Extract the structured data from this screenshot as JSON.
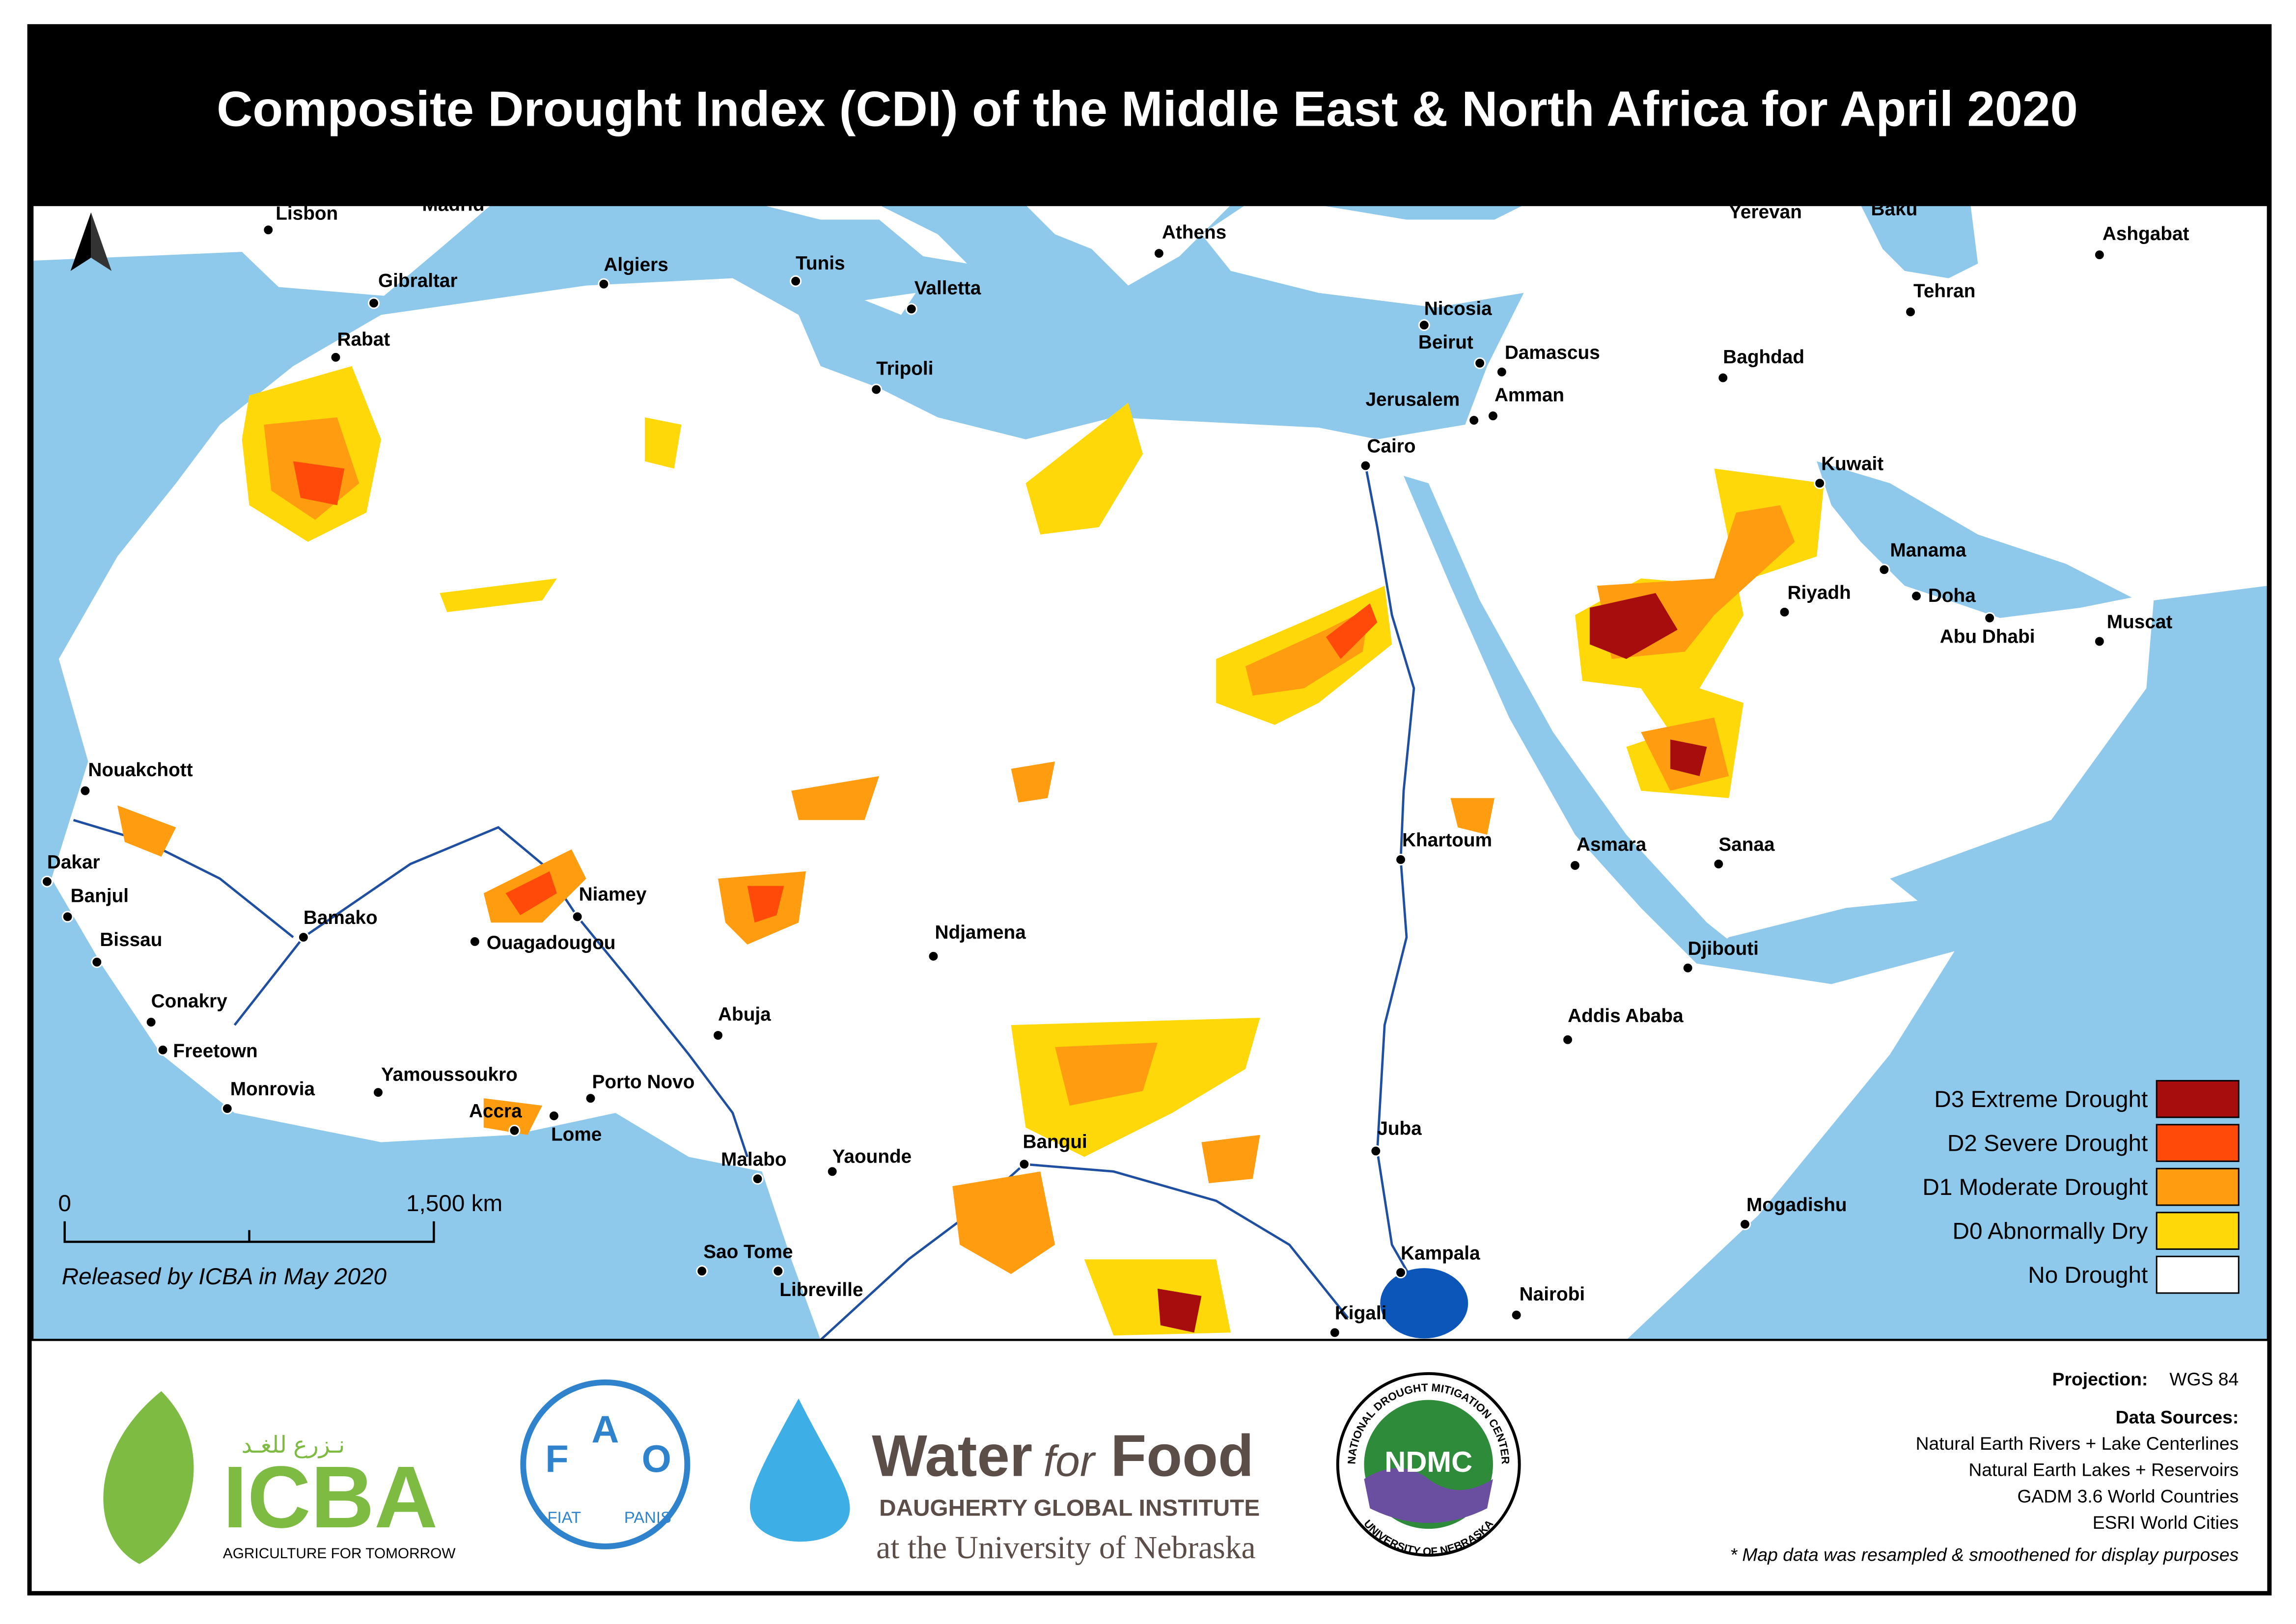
{
  "title": "Composite Drought Index (CDI) of the Middle East & North Africa for April 2020",
  "cities": [
    "Lisbon",
    "Madrid",
    "Gibraltar",
    "Rabat",
    "Algiers",
    "Tunis",
    "Valletta",
    "Tripoli",
    "Athens",
    "Nicosia",
    "Beirut",
    "Damascus",
    "Jerusalem",
    "Amman",
    "Cairo",
    "Yerevan",
    "Baku",
    "Ashgabat",
    "Tehran",
    "Baghdad",
    "Kuwait",
    "Manama",
    "Doha",
    "Abu Dhabi",
    "Riyadh",
    "Muscat",
    "Nouakchott",
    "Dakar",
    "Banjul",
    "Bissau",
    "Bamako",
    "Conakry",
    "Freetown",
    "Monrovia",
    "Yamoussoukro",
    "Ouagadougou",
    "Niamey",
    "Accra",
    "Lome",
    "Porto Novo",
    "Abuja",
    "Ndjamena",
    "Malabo",
    "Yaounde",
    "Bangui",
    "Sao Tome",
    "Libreville",
    "Khartoum",
    "Asmara",
    "Sanaa",
    "Djibouti",
    "Addis Ababa",
    "Juba",
    "Mogadishu",
    "Kampala",
    "Nairobi",
    "Kigali"
  ],
  "legend": [
    {
      "label": "D3 Extreme Drought",
      "color": "#a80d0d"
    },
    {
      "label": "D2 Severe Drought",
      "color": "#ff4a0a"
    },
    {
      "label": "D1 Moderate Drought",
      "color": "#ff9c0f"
    },
    {
      "label": "D0 Abnormally Dry",
      "color": "#ffd80a"
    },
    {
      "label": "No Drought",
      "color": "#ffffff"
    }
  ],
  "scale_bar": {
    "start": "0",
    "end": "1,500 km"
  },
  "release_note": "Released by ICBA in May 2020",
  "projection": {
    "label": "Projection:",
    "value": "WGS 84"
  },
  "data_sources": {
    "heading": "Data Sources:",
    "items": [
      "Natural Earth Rivers + Lake Centerlines",
      "Natural Earth Lakes + Reservoirs",
      "GADM 3.6 World Countries",
      "ESRI World Cities"
    ]
  },
  "footnote": "* Map data was resampled & smoothened for display purposes",
  "logos": {
    "icba": {
      "name": "ICBA",
      "tagline": "AGRICULTURE FOR TOMORROW",
      "arabic": "نـزرع للغـد"
    },
    "fao": {
      "letters": [
        "F",
        "A",
        "O"
      ],
      "motto": [
        "FIAT",
        "PANIS"
      ]
    },
    "water_for_food": {
      "water": "Water",
      "for": "for",
      "food": "Food",
      "institute": "DAUGHERTY GLOBAL INSTITUTE",
      "university": "at the University of Nebraska"
    },
    "ndmc": {
      "name": "NDMC",
      "ring_top": "NATIONAL DROUGHT MITIGATION CENTER",
      "ring_bottom": "UNIVERSITY OF NEBRASKA"
    }
  }
}
